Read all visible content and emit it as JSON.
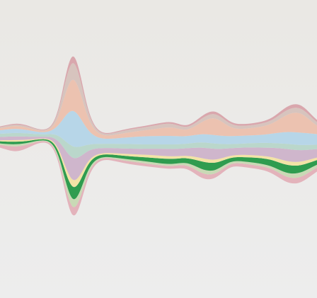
{
  "background": {
    "top": "#eae8e4",
    "bottom": "#ededed"
  },
  "chart_data": {
    "type": "area",
    "layout": "streamgraph",
    "baseline": "wiggle",
    "smoothing": "basis",
    "title": "",
    "xlabel": "",
    "ylabel": "",
    "axes_visible": false,
    "grid": false,
    "legend": "none",
    "x_count": 25,
    "series": [
      {
        "color": "#e3b3bb",
        "values": [
          0.5,
          0.7,
          1.6,
          0.8,
          0.2,
          0.8,
          3.0,
          1.0,
          0.4,
          0.6,
          0.8,
          0.8,
          0.7,
          0.8,
          0.9,
          1.5,
          1.2,
          0.8,
          1.0,
          0.9,
          1.2,
          1.5,
          1.6,
          1.1,
          0.8
        ]
      },
      {
        "color": "#c9d9b5",
        "values": [
          0.3,
          0.4,
          0.7,
          0.4,
          0.1,
          0.4,
          3.0,
          0.8,
          0.2,
          0.4,
          0.5,
          0.6,
          0.6,
          0.5,
          0.6,
          1.2,
          1.0,
          0.5,
          0.6,
          0.7,
          0.6,
          1.2,
          1.3,
          0.8,
          0.5
        ]
      },
      {
        "color": "#2f9c4f",
        "values": [
          0.5,
          0.6,
          0.8,
          0.5,
          0.2,
          0.8,
          4.5,
          1.4,
          0.6,
          0.8,
          0.9,
          1.1,
          1.3,
          1.5,
          1.1,
          2.3,
          2.2,
          0.9,
          1.2,
          1.5,
          1.8,
          2.3,
          2.1,
          1.3,
          0.9
        ]
      },
      {
        "color": "#f2e3a6",
        "values": [
          0.2,
          0.3,
          0.5,
          0.3,
          0.1,
          0.4,
          2.6,
          0.7,
          0.3,
          0.5,
          0.6,
          0.7,
          0.8,
          0.7,
          0.6,
          1.0,
          0.9,
          0.5,
          0.7,
          0.6,
          0.8,
          1.1,
          1.0,
          0.7,
          0.5
        ]
      },
      {
        "color": "#cfb6cc",
        "values": [
          0.7,
          0.9,
          1.1,
          0.8,
          0.3,
          1.1,
          8.3,
          2.3,
          1.3,
          1.4,
          1.5,
          1.6,
          1.9,
          2.1,
          1.9,
          3.0,
          3.2,
          1.9,
          2.0,
          2.2,
          2.5,
          3.6,
          3.2,
          2.4,
          1.8
        ]
      },
      {
        "color": "#bad7cb",
        "values": [
          0.8,
          0.9,
          1.0,
          0.9,
          0.5,
          1.1,
          4.1,
          1.5,
          1.1,
          1.2,
          1.3,
          1.2,
          1.2,
          1.3,
          1.2,
          1.5,
          1.5,
          1.1,
          1.1,
          1.3,
          1.3,
          1.4,
          1.5,
          1.2,
          1.0
        ]
      },
      {
        "color": "#b7d6e8",
        "values": [
          0.9,
          1.0,
          1.2,
          0.9,
          0.4,
          1.2,
          13.6,
          3.1,
          1.2,
          1.5,
          1.9,
          2.3,
          2.3,
          2.4,
          2.0,
          2.3,
          2.4,
          2.2,
          2.2,
          2.1,
          2.6,
          3.4,
          3.5,
          3.0,
          2.5
        ]
      },
      {
        "color": "#ecc2b0",
        "values": [
          0.5,
          0.5,
          0.9,
          0.6,
          0.2,
          0.9,
          12.1,
          2.5,
          0.7,
          1.0,
          1.4,
          1.6,
          2.1,
          2.6,
          1.3,
          3.2,
          5.5,
          2.1,
          1.8,
          2.2,
          2.6,
          4.9,
          6.1,
          2.1,
          1.3
        ]
      },
      {
        "color": "#d7c4be",
        "values": [
          0.3,
          0.3,
          0.4,
          0.4,
          0.1,
          0.5,
          6.5,
          1.1,
          0.3,
          0.6,
          0.8,
          0.8,
          1.0,
          1.1,
          0.6,
          1.0,
          1.3,
          0.9,
          0.8,
          0.8,
          0.9,
          1.4,
          1.4,
          1.0,
          0.6
        ]
      },
      {
        "color": "#d9a7ad",
        "values": [
          0.2,
          0.2,
          0.3,
          0.2,
          0.1,
          0.3,
          2.6,
          0.5,
          0.2,
          0.3,
          0.3,
          0.4,
          0.4,
          0.5,
          0.4,
          0.7,
          0.8,
          0.5,
          0.5,
          0.5,
          0.6,
          1.0,
          1.0,
          0.6,
          0.4
        ]
      }
    ]
  }
}
